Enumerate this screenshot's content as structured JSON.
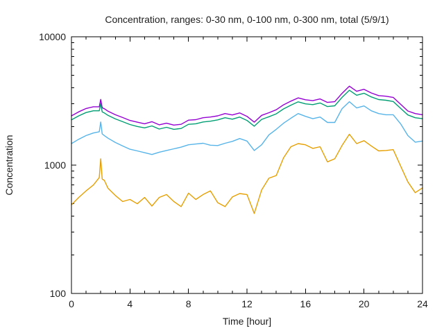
{
  "chart_data": {
    "type": "line",
    "title": "Concentration, ranges: 0-30 nm, 0-100 nm, 0-300 nm, total (5/9/1)",
    "xlabel": "Time [hour]",
    "ylabel": "Concentration",
    "xlim": [
      0,
      24
    ],
    "ylim": [
      100,
      10000
    ],
    "y_scale": "log10",
    "grid": false,
    "legend_position": "none",
    "x_ticks_major": [
      0,
      4,
      8,
      12,
      16,
      20,
      24
    ],
    "x_minor_step": 1,
    "y_ticks_major": [
      100,
      1000,
      10000
    ],
    "y_minor_per_decade": [
      2,
      3,
      4,
      5,
      6,
      7,
      8,
      9
    ],
    "x": [
      0,
      0.5,
      1,
      1.5,
      1.9,
      2,
      2.1,
      2.25,
      2.5,
      3,
      3.5,
      4,
      4.5,
      5,
      5.5,
      6,
      6.5,
      7,
      7.5,
      8,
      8.5,
      9,
      9.5,
      10,
      10.5,
      11,
      11.5,
      12,
      12.5,
      13,
      13.5,
      14,
      14.5,
      15,
      15.5,
      16,
      16.5,
      17,
      17.5,
      18,
      18.5,
      19,
      19.5,
      20,
      20.5,
      21,
      21.5,
      22,
      22.5,
      23,
      23.5,
      24
    ],
    "series": [
      {
        "name": "total",
        "color": "#9400d3",
        "values": [
          2420,
          2600,
          2760,
          2850,
          2850,
          3250,
          2800,
          2750,
          2630,
          2470,
          2350,
          2230,
          2160,
          2100,
          2180,
          2060,
          2120,
          2050,
          2080,
          2240,
          2260,
          2340,
          2370,
          2420,
          2520,
          2460,
          2550,
          2400,
          2160,
          2440,
          2560,
          2700,
          2950,
          3150,
          3340,
          3230,
          3180,
          3280,
          3080,
          3120,
          3620,
          4120,
          3760,
          3900,
          3650,
          3480,
          3440,
          3370,
          2980,
          2640,
          2520,
          2470
        ]
      },
      {
        "name": "0-300 nm",
        "color": "#009e73",
        "values": [
          2250,
          2420,
          2570,
          2650,
          2650,
          3020,
          2600,
          2550,
          2440,
          2290,
          2180,
          2070,
          2000,
          1950,
          2020,
          1910,
          1970,
          1900,
          1930,
          2080,
          2100,
          2170,
          2200,
          2250,
          2340,
          2280,
          2370,
          2230,
          2010,
          2270,
          2380,
          2510,
          2740,
          2930,
          3110,
          3000,
          2960,
          3050,
          2860,
          2900,
          3370,
          3830,
          3500,
          3630,
          3400,
          3240,
          3200,
          3130,
          2770,
          2460,
          2340,
          2300
        ]
      },
      {
        "name": "0-100 nm",
        "color": "#56b4e9",
        "values": [
          1470,
          1590,
          1700,
          1780,
          1820,
          2170,
          1750,
          1700,
          1620,
          1500,
          1410,
          1330,
          1290,
          1250,
          1210,
          1260,
          1300,
          1340,
          1380,
          1440,
          1460,
          1480,
          1430,
          1420,
          1480,
          1530,
          1610,
          1540,
          1300,
          1440,
          1720,
          1900,
          2120,
          2320,
          2520,
          2400,
          2300,
          2370,
          2150,
          2150,
          2750,
          3120,
          2790,
          2890,
          2650,
          2520,
          2470,
          2470,
          2100,
          1700,
          1510,
          1540
        ]
      },
      {
        "name": "0-30 nm",
        "color": "#e69f00",
        "values": [
          490,
          560,
          630,
          700,
          800,
          1120,
          780,
          760,
          660,
          580,
          520,
          540,
          500,
          560,
          480,
          560,
          590,
          520,
          475,
          605,
          540,
          590,
          630,
          510,
          475,
          565,
          600,
          590,
          420,
          640,
          790,
          830,
          1140,
          1390,
          1470,
          1440,
          1350,
          1390,
          1060,
          1120,
          1420,
          1740,
          1470,
          1550,
          1410,
          1290,
          1300,
          1320,
          985,
          740,
          610,
          665
        ]
      }
    ]
  }
}
